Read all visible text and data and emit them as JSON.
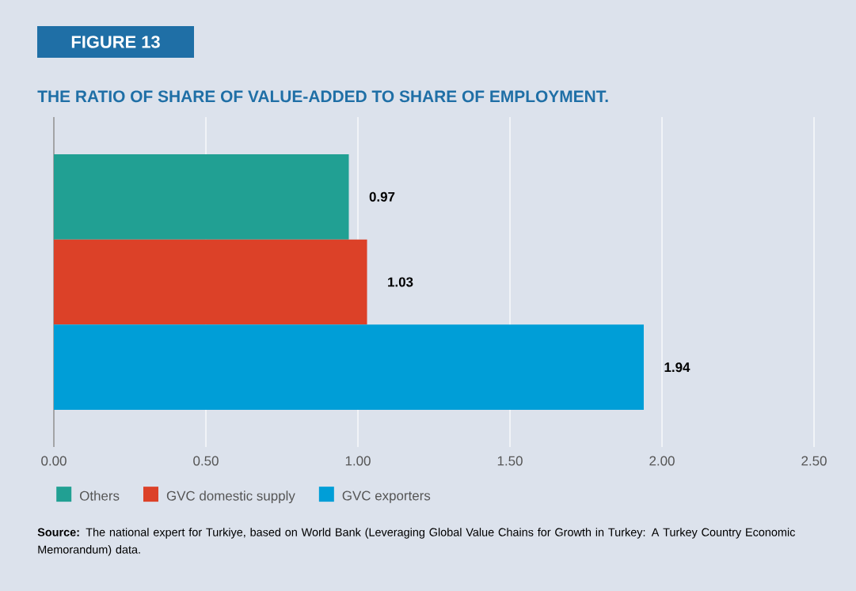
{
  "chart_data": {
    "type": "bar",
    "orientation": "horizontal",
    "title": "THE RATIO OF SHARE OF VALUE-ADDED TO SHARE OF EMPLOYMENT.",
    "annotations": [
      "FIGURE 13",
      "**Source:** The national expert for Turkiye, based on World Bank (Leveraging Global Value Chains for Growth in Turkey: A Turkey Country Economic Memorandum) data."
    ],
    "categories": [
      null
    ],
    "series": [
      {
        "name": "Others",
        "color": "#21a093",
        "values": [
          0.97
        ]
      },
      {
        "name": "GVC domestic supply",
        "color": "#dc4128",
        "values": [
          1.03
        ]
      },
      {
        "name": "GVC exporters",
        "color": "#009ed7",
        "values": [
          1.94
        ]
      }
    ],
    "xlim": [
      0,
      2.5
    ],
    "xticks": [
      {
        "value": 0,
        "label": "0.00"
      },
      {
        "value": 0.5,
        "label": "0.50"
      },
      {
        "value": 1,
        "label": "1.00"
      },
      {
        "value": 1.5,
        "label": "1.50"
      },
      {
        "value": 2,
        "label": "2.00"
      },
      {
        "value": 2.5,
        "label": "2.50"
      }
    ],
    "grid": "x",
    "legend": "bottom",
    "data_labels": true
  }
}
